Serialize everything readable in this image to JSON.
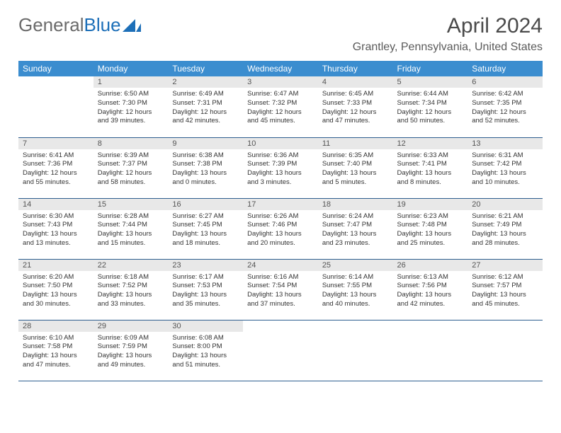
{
  "logo": {
    "part1": "General",
    "part2": "Blue"
  },
  "title": "April 2024",
  "location": "Grantley, Pennsylvania, United States",
  "colors": {
    "header_bg": "#3b8dcf",
    "header_text": "#ffffff",
    "daynum_bg": "#e8e8e8",
    "daynum_text": "#555555",
    "cell_border": "#2d5e8f",
    "body_text": "#333333",
    "title_text": "#4a4a4a",
    "logo_gray": "#6b6b6b",
    "logo_blue": "#1d6fb8"
  },
  "weekdays": [
    "Sunday",
    "Monday",
    "Tuesday",
    "Wednesday",
    "Thursday",
    "Friday",
    "Saturday"
  ],
  "weeks": [
    [
      {
        "empty": true
      },
      {
        "day": "1",
        "sunrise": "Sunrise: 6:50 AM",
        "sunset": "Sunset: 7:30 PM",
        "daylight1": "Daylight: 12 hours",
        "daylight2": "and 39 minutes."
      },
      {
        "day": "2",
        "sunrise": "Sunrise: 6:49 AM",
        "sunset": "Sunset: 7:31 PM",
        "daylight1": "Daylight: 12 hours",
        "daylight2": "and 42 minutes."
      },
      {
        "day": "3",
        "sunrise": "Sunrise: 6:47 AM",
        "sunset": "Sunset: 7:32 PM",
        "daylight1": "Daylight: 12 hours",
        "daylight2": "and 45 minutes."
      },
      {
        "day": "4",
        "sunrise": "Sunrise: 6:45 AM",
        "sunset": "Sunset: 7:33 PM",
        "daylight1": "Daylight: 12 hours",
        "daylight2": "and 47 minutes."
      },
      {
        "day": "5",
        "sunrise": "Sunrise: 6:44 AM",
        "sunset": "Sunset: 7:34 PM",
        "daylight1": "Daylight: 12 hours",
        "daylight2": "and 50 minutes."
      },
      {
        "day": "6",
        "sunrise": "Sunrise: 6:42 AM",
        "sunset": "Sunset: 7:35 PM",
        "daylight1": "Daylight: 12 hours",
        "daylight2": "and 52 minutes."
      }
    ],
    [
      {
        "day": "7",
        "sunrise": "Sunrise: 6:41 AM",
        "sunset": "Sunset: 7:36 PM",
        "daylight1": "Daylight: 12 hours",
        "daylight2": "and 55 minutes."
      },
      {
        "day": "8",
        "sunrise": "Sunrise: 6:39 AM",
        "sunset": "Sunset: 7:37 PM",
        "daylight1": "Daylight: 12 hours",
        "daylight2": "and 58 minutes."
      },
      {
        "day": "9",
        "sunrise": "Sunrise: 6:38 AM",
        "sunset": "Sunset: 7:38 PM",
        "daylight1": "Daylight: 13 hours",
        "daylight2": "and 0 minutes."
      },
      {
        "day": "10",
        "sunrise": "Sunrise: 6:36 AM",
        "sunset": "Sunset: 7:39 PM",
        "daylight1": "Daylight: 13 hours",
        "daylight2": "and 3 minutes."
      },
      {
        "day": "11",
        "sunrise": "Sunrise: 6:35 AM",
        "sunset": "Sunset: 7:40 PM",
        "daylight1": "Daylight: 13 hours",
        "daylight2": "and 5 minutes."
      },
      {
        "day": "12",
        "sunrise": "Sunrise: 6:33 AM",
        "sunset": "Sunset: 7:41 PM",
        "daylight1": "Daylight: 13 hours",
        "daylight2": "and 8 minutes."
      },
      {
        "day": "13",
        "sunrise": "Sunrise: 6:31 AM",
        "sunset": "Sunset: 7:42 PM",
        "daylight1": "Daylight: 13 hours",
        "daylight2": "and 10 minutes."
      }
    ],
    [
      {
        "day": "14",
        "sunrise": "Sunrise: 6:30 AM",
        "sunset": "Sunset: 7:43 PM",
        "daylight1": "Daylight: 13 hours",
        "daylight2": "and 13 minutes."
      },
      {
        "day": "15",
        "sunrise": "Sunrise: 6:28 AM",
        "sunset": "Sunset: 7:44 PM",
        "daylight1": "Daylight: 13 hours",
        "daylight2": "and 15 minutes."
      },
      {
        "day": "16",
        "sunrise": "Sunrise: 6:27 AM",
        "sunset": "Sunset: 7:45 PM",
        "daylight1": "Daylight: 13 hours",
        "daylight2": "and 18 minutes."
      },
      {
        "day": "17",
        "sunrise": "Sunrise: 6:26 AM",
        "sunset": "Sunset: 7:46 PM",
        "daylight1": "Daylight: 13 hours",
        "daylight2": "and 20 minutes."
      },
      {
        "day": "18",
        "sunrise": "Sunrise: 6:24 AM",
        "sunset": "Sunset: 7:47 PM",
        "daylight1": "Daylight: 13 hours",
        "daylight2": "and 23 minutes."
      },
      {
        "day": "19",
        "sunrise": "Sunrise: 6:23 AM",
        "sunset": "Sunset: 7:48 PM",
        "daylight1": "Daylight: 13 hours",
        "daylight2": "and 25 minutes."
      },
      {
        "day": "20",
        "sunrise": "Sunrise: 6:21 AM",
        "sunset": "Sunset: 7:49 PM",
        "daylight1": "Daylight: 13 hours",
        "daylight2": "and 28 minutes."
      }
    ],
    [
      {
        "day": "21",
        "sunrise": "Sunrise: 6:20 AM",
        "sunset": "Sunset: 7:50 PM",
        "daylight1": "Daylight: 13 hours",
        "daylight2": "and 30 minutes."
      },
      {
        "day": "22",
        "sunrise": "Sunrise: 6:18 AM",
        "sunset": "Sunset: 7:52 PM",
        "daylight1": "Daylight: 13 hours",
        "daylight2": "and 33 minutes."
      },
      {
        "day": "23",
        "sunrise": "Sunrise: 6:17 AM",
        "sunset": "Sunset: 7:53 PM",
        "daylight1": "Daylight: 13 hours",
        "daylight2": "and 35 minutes."
      },
      {
        "day": "24",
        "sunrise": "Sunrise: 6:16 AM",
        "sunset": "Sunset: 7:54 PM",
        "daylight1": "Daylight: 13 hours",
        "daylight2": "and 37 minutes."
      },
      {
        "day": "25",
        "sunrise": "Sunrise: 6:14 AM",
        "sunset": "Sunset: 7:55 PM",
        "daylight1": "Daylight: 13 hours",
        "daylight2": "and 40 minutes."
      },
      {
        "day": "26",
        "sunrise": "Sunrise: 6:13 AM",
        "sunset": "Sunset: 7:56 PM",
        "daylight1": "Daylight: 13 hours",
        "daylight2": "and 42 minutes."
      },
      {
        "day": "27",
        "sunrise": "Sunrise: 6:12 AM",
        "sunset": "Sunset: 7:57 PM",
        "daylight1": "Daylight: 13 hours",
        "daylight2": "and 45 minutes."
      }
    ],
    [
      {
        "day": "28",
        "sunrise": "Sunrise: 6:10 AM",
        "sunset": "Sunset: 7:58 PM",
        "daylight1": "Daylight: 13 hours",
        "daylight2": "and 47 minutes."
      },
      {
        "day": "29",
        "sunrise": "Sunrise: 6:09 AM",
        "sunset": "Sunset: 7:59 PM",
        "daylight1": "Daylight: 13 hours",
        "daylight2": "and 49 minutes."
      },
      {
        "day": "30",
        "sunrise": "Sunrise: 6:08 AM",
        "sunset": "Sunset: 8:00 PM",
        "daylight1": "Daylight: 13 hours",
        "daylight2": "and 51 minutes."
      },
      {
        "empty": true
      },
      {
        "empty": true
      },
      {
        "empty": true
      },
      {
        "empty": true
      }
    ]
  ]
}
